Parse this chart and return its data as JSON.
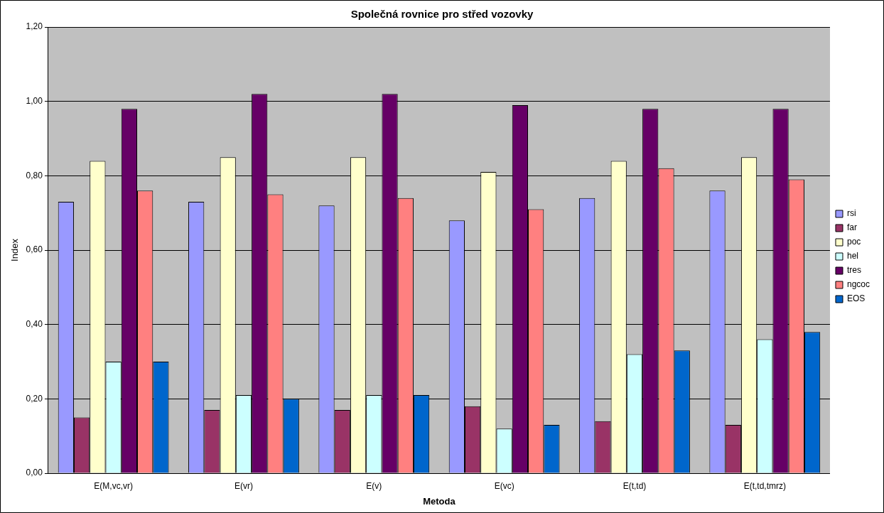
{
  "chart_data": {
    "type": "bar",
    "title": "Společná rovnice pro střed vozovky",
    "xlabel": "Metoda",
    "ylabel": "Index",
    "categories": [
      "E(M,vc,vr)",
      "E(vr)",
      "E(v)",
      "E(vc)",
      "E(t,td)",
      "E(t,td,tmrz)"
    ],
    "series": [
      {
        "name": "rsi",
        "color": "#9999ff",
        "values": [
          0.73,
          0.73,
          0.72,
          0.68,
          0.74,
          0.76
        ]
      },
      {
        "name": "far",
        "color": "#993366",
        "values": [
          0.15,
          0.17,
          0.17,
          0.18,
          0.14,
          0.13
        ]
      },
      {
        "name": "poc",
        "color": "#ffffcc",
        "values": [
          0.84,
          0.85,
          0.85,
          0.81,
          0.84,
          0.85
        ]
      },
      {
        "name": "hel",
        "color": "#ccffff",
        "values": [
          0.3,
          0.21,
          0.21,
          0.12,
          0.32,
          0.36
        ]
      },
      {
        "name": "tres",
        "color": "#660066",
        "values": [
          0.98,
          1.02,
          1.02,
          0.99,
          0.98,
          0.98
        ]
      },
      {
        "name": "ngcoc",
        "color": "#ff8080",
        "values": [
          0.76,
          0.75,
          0.74,
          0.71,
          0.82,
          0.79
        ]
      },
      {
        "name": "EOS",
        "color": "#0066cc",
        "values": [
          0.3,
          0.2,
          0.21,
          0.13,
          0.33,
          0.38
        ]
      }
    ],
    "ylim": [
      0,
      1.2
    ],
    "yticks": [
      {
        "value": 0,
        "label": "0,00"
      },
      {
        "value": 0.2,
        "label": "0,20"
      },
      {
        "value": 0.4,
        "label": "0,40"
      },
      {
        "value": 0.6,
        "label": "0,60"
      },
      {
        "value": 0.8,
        "label": "0,80"
      },
      {
        "value": 1,
        "label": "1,00"
      },
      {
        "value": 1.2,
        "label": "1,20"
      }
    ],
    "grid": "y",
    "legend": "right"
  }
}
